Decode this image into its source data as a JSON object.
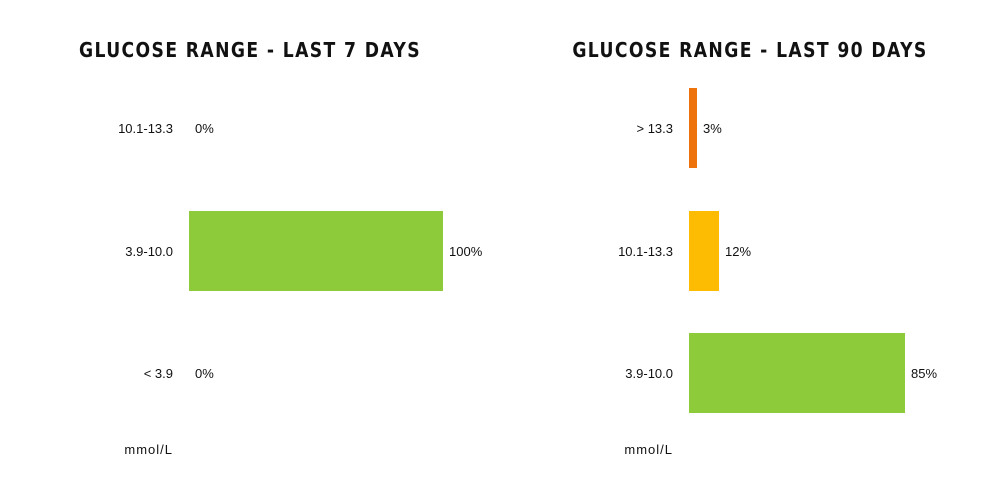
{
  "chart_data": [
    {
      "type": "bar",
      "orientation": "horizontal",
      "title": "GLUCOSE RANGE - LAST 7 DAYS",
      "categories": [
        "10.1-13.3",
        "3.9-10.0",
        "< 3.9"
      ],
      "values": [
        0,
        100,
        0
      ],
      "value_labels": [
        "0%",
        "100%",
        "0%"
      ],
      "colors": [
        "#f07d0a",
        "#8dcb3a",
        "#e53935"
      ],
      "xlim": [
        0,
        100
      ],
      "unit_label": "mmol/L",
      "grid": false
    },
    {
      "type": "bar",
      "orientation": "horizontal",
      "title": "GLUCOSE RANGE - LAST 90 DAYS",
      "categories": [
        "> 13.3",
        "10.1-13.3",
        "3.9-10.0"
      ],
      "values": [
        3,
        12,
        85
      ],
      "value_labels": [
        "3%",
        "12%",
        "85%"
      ],
      "colors": [
        "#ee730c",
        "#fdbb02",
        "#8dcb3a"
      ],
      "xlim": [
        0,
        100
      ],
      "unit_label": "mmol/L",
      "grid": false
    }
  ]
}
